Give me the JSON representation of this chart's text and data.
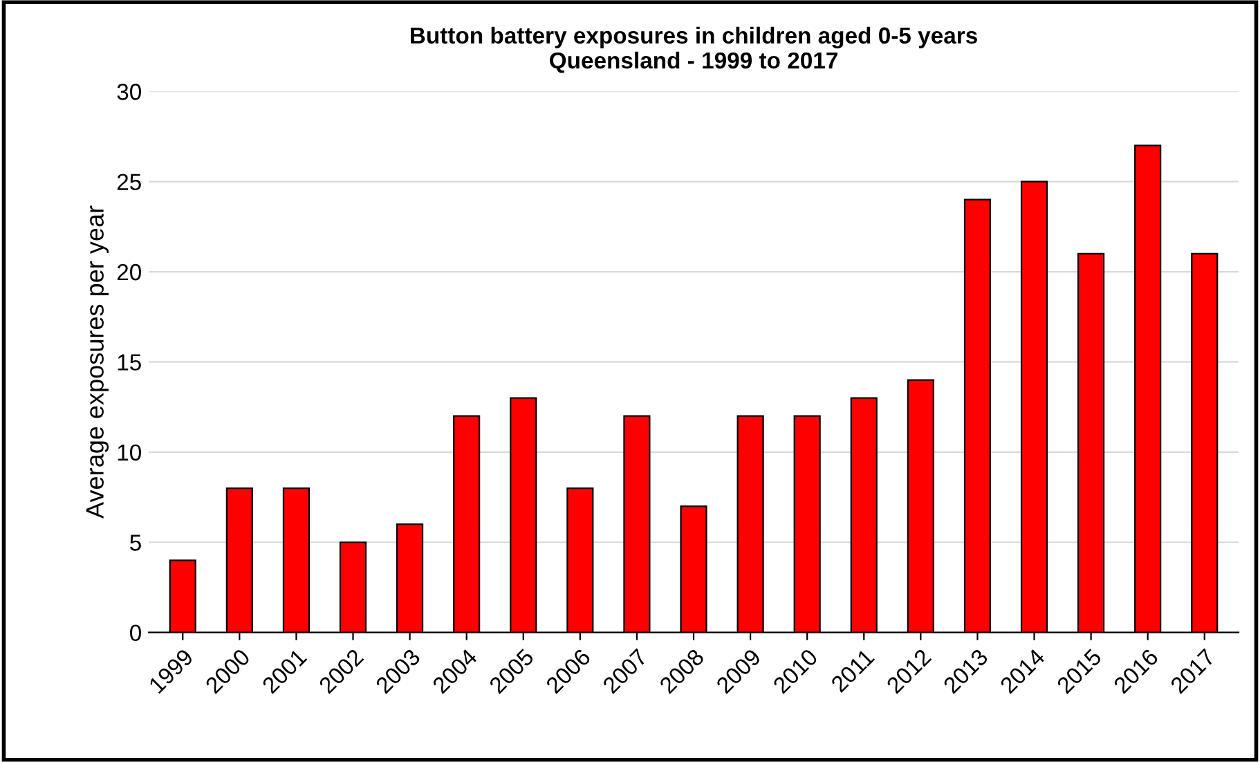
{
  "chart_data": {
    "type": "bar",
    "title": "Button battery exposures in children aged 0-5 years\nQueensland - 1999 to 2017",
    "ylabel": "Average exposures per year",
    "categories": [
      "1999",
      "2000",
      "2001",
      "2002",
      "2003",
      "2004",
      "2005",
      "2006",
      "2007",
      "2008",
      "2009",
      "2010",
      "2011",
      "2012",
      "2013",
      "2014",
      "2015",
      "2016",
      "2017"
    ],
    "values": [
      4,
      8,
      8,
      5,
      6,
      12,
      13,
      8,
      12,
      7,
      12,
      12,
      13,
      14,
      24,
      25,
      21,
      27,
      21
    ],
    "color": "#ff0000",
    "ylim": [
      0,
      30
    ],
    "yticks": [
      0,
      5,
      10,
      15,
      20,
      25,
      30
    ],
    "grid": "y",
    "legend": false
  }
}
